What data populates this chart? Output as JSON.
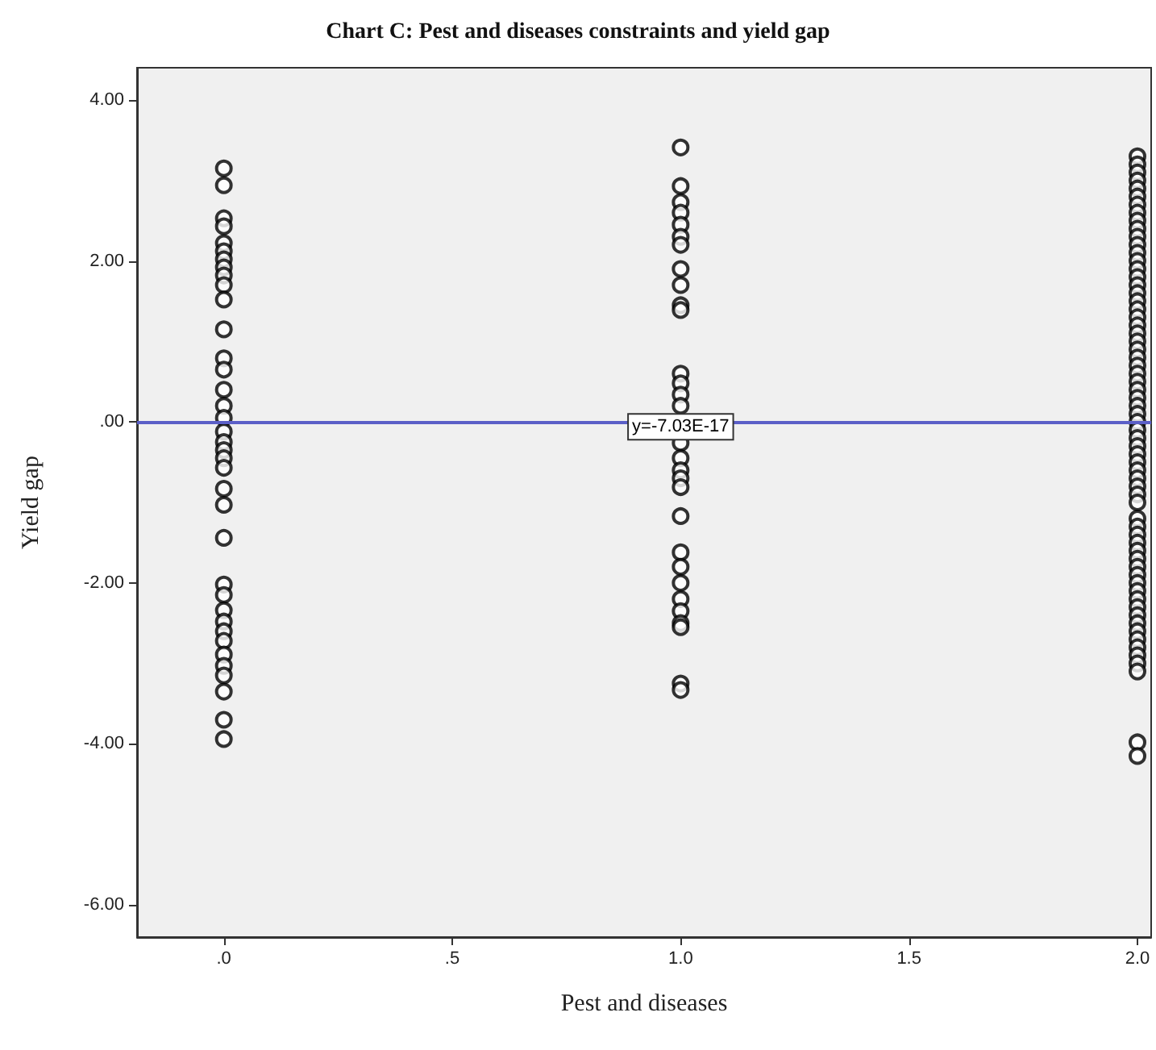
{
  "chart_data": {
    "type": "scatter",
    "title": "Chart C: Pest and diseases constraints and yield gap",
    "xlabel": "Pest and diseases",
    "ylabel": "Yield gap",
    "x": [
      0,
      0,
      0,
      0,
      0,
      0,
      0,
      0,
      0,
      0,
      0,
      0,
      0,
      0,
      0,
      0,
      0,
      0,
      0,
      0,
      0,
      0,
      0,
      0,
      0,
      0,
      0,
      0,
      0,
      0,
      0,
      0,
      0,
      0,
      0,
      0,
      0,
      1,
      1,
      1,
      1,
      1,
      1,
      1,
      1,
      1,
      1,
      1,
      1,
      1,
      1,
      1,
      1,
      1,
      1,
      1,
      1,
      1,
      1,
      1,
      1,
      1,
      1,
      1,
      1,
      1,
      1,
      2,
      2,
      2,
      2,
      2,
      2,
      2,
      2,
      2,
      2,
      2,
      2,
      2,
      2,
      2,
      2,
      2,
      2,
      2,
      2,
      2,
      2,
      2,
      2,
      2,
      2,
      2,
      2,
      2,
      2,
      2,
      2,
      2,
      2,
      2,
      2,
      2,
      2,
      2,
      2,
      2,
      2,
      2,
      2,
      2,
      2,
      2,
      2,
      2,
      2,
      2,
      2,
      2,
      2,
      2,
      2,
      2,
      2,
      2,
      2,
      2,
      2,
      2,
      2,
      2,
      2
    ],
    "values": [
      3.15,
      2.94,
      2.53,
      2.43,
      2.22,
      2.12,
      2.02,
      1.92,
      1.82,
      1.7,
      1.52,
      1.15,
      0.79,
      0.65,
      0.4,
      0.2,
      0.05,
      -0.12,
      -0.25,
      -0.35,
      -0.45,
      -0.57,
      -0.83,
      -1.03,
      -1.44,
      -2.02,
      -2.15,
      -2.34,
      -2.48,
      -2.6,
      -2.72,
      -2.89,
      -3.03,
      -3.15,
      -3.35,
      -3.7,
      -3.94,
      3.41,
      2.93,
      2.73,
      2.6,
      2.45,
      2.3,
      2.2,
      1.9,
      1.7,
      1.45,
      1.39,
      0.6,
      0.48,
      0.34,
      0.2,
      -0.26,
      -0.45,
      -0.6,
      -0.7,
      -0.81,
      -1.17,
      -1.62,
      -1.8,
      -2.0,
      -2.2,
      -2.35,
      -2.5,
      -2.55,
      -3.25,
      -3.33,
      3.3,
      3.2,
      3.1,
      3.0,
      2.9,
      2.8,
      2.7,
      2.6,
      2.5,
      2.4,
      2.3,
      2.2,
      2.1,
      2.0,
      1.9,
      1.8,
      1.7,
      1.6,
      1.5,
      1.4,
      1.3,
      1.2,
      1.1,
      1.0,
      0.9,
      0.8,
      0.7,
      0.6,
      0.5,
      0.4,
      0.3,
      0.2,
      0.1,
      0.0,
      -0.1,
      -0.2,
      -0.3,
      -0.4,
      -0.5,
      -0.6,
      -0.7,
      -0.8,
      -0.9,
      -1.0,
      -1.2,
      -1.3,
      -1.4,
      -1.5,
      -1.6,
      -1.7,
      -1.8,
      -1.9,
      -2.0,
      -2.1,
      -2.2,
      -2.3,
      -2.4,
      -2.5,
      -2.6,
      -2.7,
      -2.8,
      -2.9,
      -3.0,
      -3.1,
      -3.98,
      -4.15
    ],
    "color": "#000000",
    "marker": "circle",
    "xlim": [
      -0.19,
      2.03
    ],
    "ylim": [
      -6.4,
      4.4
    ],
    "xticks": [
      {
        "value": 0,
        "label": ".0"
      },
      {
        "value": 0.5,
        "label": ".5"
      },
      {
        "value": 1,
        "label": "1.0"
      },
      {
        "value": 1.5,
        "label": "1.5"
      },
      {
        "value": 2,
        "label": "2.0"
      }
    ],
    "yticks": [
      {
        "value": -6,
        "label": "-6.00"
      },
      {
        "value": -4,
        "label": "-4.00"
      },
      {
        "value": -2,
        "label": "-2.00"
      },
      {
        "value": 0,
        "label": ".00"
      },
      {
        "value": 2,
        "label": "2.00"
      },
      {
        "value": 4,
        "label": "4.00"
      }
    ],
    "ref_lines": [
      {
        "axis": "y",
        "value": -7.03e-17,
        "color": "#5b5fc7"
      }
    ],
    "annotations": [
      {
        "text": "y=-7.03E-17",
        "x": 1,
        "y": -7.03e-17
      }
    ],
    "grid": false
  }
}
